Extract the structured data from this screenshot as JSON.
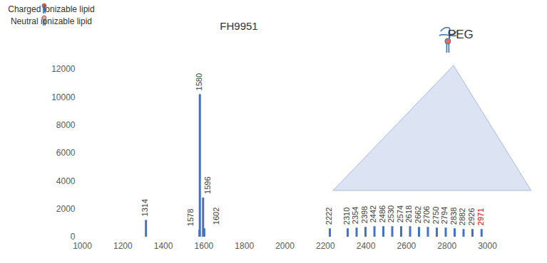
{
  "chart_data": {
    "type": "bar",
    "title": "FH9951",
    "x": [
      1314,
      1578,
      1580,
      1596,
      1602,
      2222,
      2310,
      2354,
      2398,
      2442,
      2486,
      2530,
      2574,
      2618,
      2662,
      2706,
      2750,
      2794,
      2838,
      2882,
      2926,
      2971
    ],
    "values": [
      1200,
      500,
      10200,
      2800,
      600,
      600,
      600,
      650,
      700,
      750,
      750,
      750,
      750,
      750,
      700,
      700,
      650,
      650,
      600,
      550,
      550,
      550
    ],
    "peak_labels": [
      "1314",
      "1578",
      "1580",
      "1596",
      "1602",
      "2222",
      "2310",
      "2354",
      "2398",
      "2442",
      "2486",
      "2530",
      "2574",
      "2618",
      "2662",
      "2706",
      "2750",
      "2794",
      "2838",
      "2882",
      "2926",
      "2971"
    ],
    "label_colors": [
      "#404040",
      "#404040",
      "#404040",
      "#404040",
      "#404040",
      "#404040",
      "#404040",
      "#404040",
      "#404040",
      "#404040",
      "#404040",
      "#404040",
      "#404040",
      "#404040",
      "#404040",
      "#404040",
      "#404040",
      "#404040",
      "#404040",
      "#404040",
      "#404040",
      "#e00000"
    ],
    "color": "#4472c4",
    "xlim": [
      1000,
      3000
    ],
    "xticks": [
      1000,
      1200,
      1400,
      1600,
      1800,
      2000,
      2200,
      2400,
      2600,
      2800,
      3000
    ],
    "ylim": [
      0,
      12000
    ],
    "yticks": [
      0,
      2000,
      4000,
      6000,
      8000,
      10000,
      12000
    ],
    "grid": false,
    "annotations": [
      {
        "text": "Charged ionizable lipid"
      },
      {
        "text": "Neutral ionizable lipid"
      },
      {
        "text": "PEG",
        "x_range": [
          2310,
          2971
        ]
      }
    ]
  }
}
